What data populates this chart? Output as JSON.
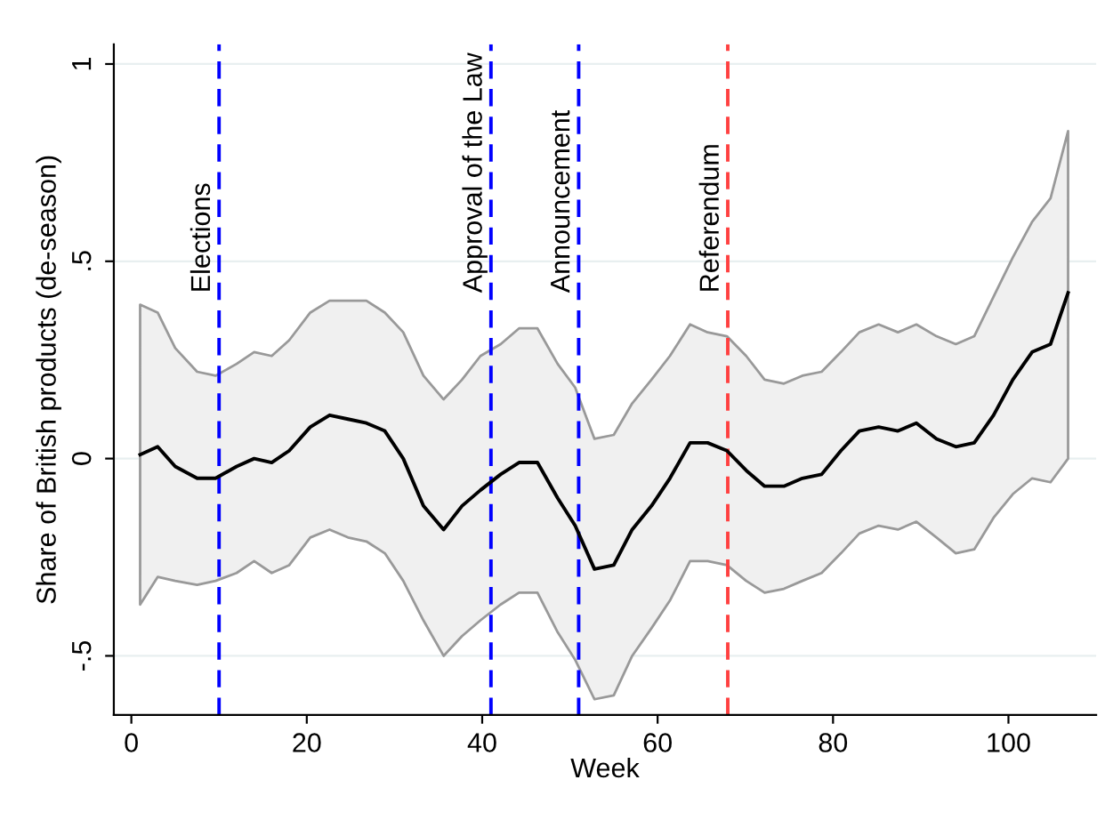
{
  "chart_data": {
    "type": "line",
    "xlabel": "Week",
    "ylabel": "Share of British products (de-season)",
    "x": [
      1,
      3,
      5,
      7.5,
      9.6,
      12,
      14,
      16,
      18,
      20.4,
      22.6,
      24.7,
      26.8,
      28.9,
      31,
      33.3,
      35.6,
      37.7,
      39.8,
      42.1,
      44.2,
      46.3,
      48.6,
      50.6,
      52.8,
      55,
      57.1,
      59.3,
      61.4,
      63.7,
      65.7,
      67.9,
      70.1,
      72.2,
      74.4,
      76.5,
      78.7,
      80.9,
      83,
      85.2,
      87.4,
      89.5,
      91.8,
      94,
      96.1,
      98.3,
      100.5,
      102.7,
      104.8,
      106.8
    ],
    "series": [
      {
        "color": "#000000",
        "values": [
          0.01,
          0.03,
          -0.02,
          -0.05,
          -0.05,
          -0.02,
          0.0,
          -0.01,
          0.02,
          0.08,
          0.11,
          0.1,
          0.09,
          0.07,
          0.0,
          -0.12,
          -0.18,
          -0.12,
          -0.08,
          -0.04,
          -0.01,
          -0.01,
          -0.1,
          -0.17,
          -0.28,
          -0.27,
          -0.18,
          -0.12,
          -0.05,
          0.04,
          0.04,
          0.02,
          -0.03,
          -0.07,
          -0.07,
          -0.05,
          -0.04,
          0.02,
          0.07,
          0.08,
          0.07,
          0.09,
          0.05,
          0.03,
          0.04,
          0.11,
          0.2,
          0.27,
          0.29,
          0.42
        ],
        "upper": [
          0.39,
          0.37,
          0.28,
          0.22,
          0.21,
          0.24,
          0.27,
          0.26,
          0.3,
          0.37,
          0.4,
          0.4,
          0.4,
          0.37,
          0.32,
          0.21,
          0.15,
          0.2,
          0.26,
          0.29,
          0.33,
          0.33,
          0.24,
          0.18,
          0.05,
          0.06,
          0.14,
          0.2,
          0.26,
          0.34,
          0.32,
          0.31,
          0.26,
          0.2,
          0.19,
          0.21,
          0.22,
          0.27,
          0.32,
          0.34,
          0.32,
          0.34,
          0.31,
          0.29,
          0.31,
          0.41,
          0.51,
          0.6,
          0.66,
          0.83
        ],
        "lower": [
          -0.37,
          -0.3,
          -0.31,
          -0.32,
          -0.31,
          -0.29,
          -0.26,
          -0.29,
          -0.27,
          -0.2,
          -0.18,
          -0.2,
          -0.21,
          -0.24,
          -0.31,
          -0.41,
          -0.5,
          -0.45,
          -0.41,
          -0.37,
          -0.34,
          -0.34,
          -0.44,
          -0.51,
          -0.61,
          -0.6,
          -0.5,
          -0.43,
          -0.36,
          -0.26,
          -0.26,
          -0.27,
          -0.31,
          -0.34,
          -0.33,
          -0.31,
          -0.29,
          -0.24,
          -0.19,
          -0.17,
          -0.18,
          -0.16,
          -0.2,
          -0.24,
          -0.23,
          -0.15,
          -0.09,
          -0.05,
          -0.06,
          0.0
        ]
      }
    ],
    "xlim": [
      -2,
      110
    ],
    "xticks": [
      0,
      20,
      40,
      60,
      80,
      100
    ],
    "ylim": [
      -0.65,
      1.05
    ],
    "yticks": [
      {
        "value": -0.5,
        "label": "-.5"
      },
      0,
      {
        "value": 0.5,
        "label": ".5"
      },
      1
    ],
    "grid": "y",
    "legend": false,
    "marker": "none",
    "line_style": "solid",
    "ref_lines": [
      {
        "axis": "x",
        "value": 10,
        "label": "Elections",
        "color": "#0000ff",
        "line_style": "dashed"
      },
      {
        "axis": "x",
        "value": 41,
        "label": "Approval of the Law",
        "color": "#0000ff",
        "line_style": "dashed"
      },
      {
        "axis": "x",
        "value": 51,
        "label": "Announcement",
        "color": "#0000ff",
        "line_style": "dashed"
      },
      {
        "axis": "x",
        "value": 68,
        "label": "Referendum",
        "color": "#ff4040",
        "line_style": "dashed"
      }
    ]
  }
}
